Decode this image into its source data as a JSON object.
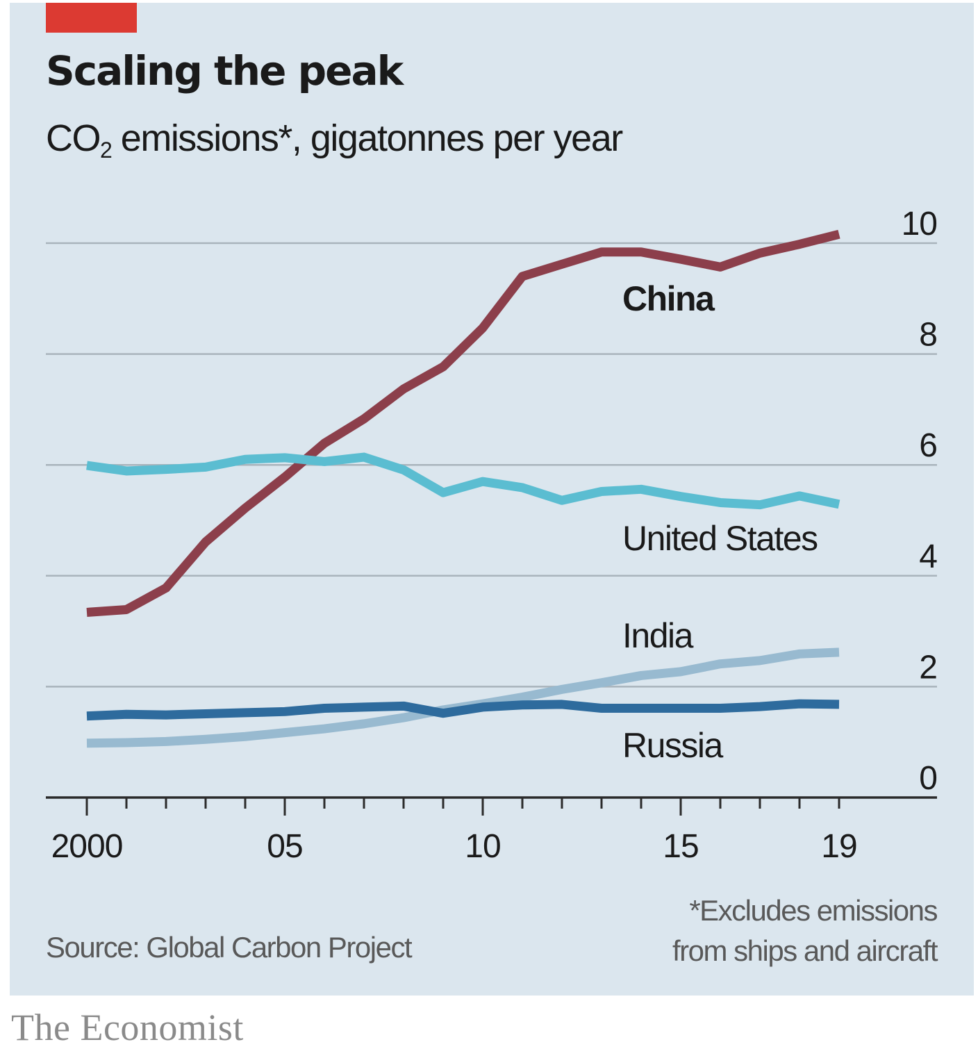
{
  "header": {
    "title": "Scaling the peak",
    "subtitle_prefix": "CO",
    "subtitle_subscript": "2",
    "subtitle_suffix": " emissions*, gigatonnes per year"
  },
  "footer": {
    "source": "Source: Global Carbon Project",
    "footnote_line1": "*Excludes emissions",
    "footnote_line2": "from ships and aircraft",
    "brand": "The Economist"
  },
  "colors": {
    "background": "#dbe6ee",
    "accent_tag": "#dc3a32",
    "gridline": "#a9b4bc",
    "axis": "#2b2b2b"
  },
  "chart_data": {
    "type": "line",
    "title": "Scaling the peak",
    "subtitle": "CO2 emissions*, gigatonnes per year",
    "xlabel": "",
    "ylabel": "Gigatonnes per year",
    "x": [
      2000,
      2001,
      2002,
      2003,
      2004,
      2005,
      2006,
      2007,
      2008,
      2009,
      2010,
      2011,
      2012,
      2013,
      2014,
      2015,
      2016,
      2017,
      2018,
      2019
    ],
    "xlim": [
      2000,
      2019
    ],
    "x_ticks": [
      2000,
      2001,
      2002,
      2003,
      2004,
      2005,
      2006,
      2007,
      2008,
      2009,
      2010,
      2011,
      2012,
      2013,
      2014,
      2015,
      2016,
      2017,
      2018,
      2019
    ],
    "x_major_ticks": [
      2000,
      2005,
      2010,
      2015
    ],
    "x_tick_labels": [
      {
        "value": 2000,
        "label": "2000"
      },
      {
        "value": 2005,
        "label": "05"
      },
      {
        "value": 2010,
        "label": "10"
      },
      {
        "value": 2015,
        "label": "15"
      },
      {
        "value": 2019,
        "label": "19"
      }
    ],
    "ylim": [
      0,
      10
    ],
    "y_ticks": [
      0,
      2,
      4,
      6,
      8,
      10
    ],
    "y_tick_labels": [
      "0",
      "2",
      "4",
      "6",
      "8",
      "10"
    ],
    "y_axis_side": "right",
    "grid": true,
    "legend": "direct-labels",
    "series": [
      {
        "name": "China",
        "label_bold": true,
        "color": "#8c3f4b",
        "values": [
          3.34,
          3.39,
          3.78,
          4.61,
          5.22,
          5.78,
          6.39,
          6.83,
          7.37,
          7.77,
          8.47,
          9.4,
          9.62,
          9.84,
          9.84,
          9.71,
          9.57,
          9.82,
          9.98,
          10.16
        ]
      },
      {
        "name": "United States",
        "label_bold": false,
        "color": "#5bbdd1",
        "values": [
          5.99,
          5.89,
          5.92,
          5.96,
          6.1,
          6.13,
          6.06,
          6.14,
          5.91,
          5.5,
          5.7,
          5.59,
          5.36,
          5.52,
          5.56,
          5.43,
          5.32,
          5.28,
          5.44,
          5.29
        ]
      },
      {
        "name": "India",
        "label_bold": false,
        "color": "#98bad0",
        "values": [
          0.98,
          0.99,
          1.01,
          1.05,
          1.1,
          1.17,
          1.24,
          1.33,
          1.44,
          1.58,
          1.69,
          1.81,
          1.95,
          2.07,
          2.2,
          2.27,
          2.41,
          2.47,
          2.59,
          2.62
        ]
      },
      {
        "name": "Russia",
        "label_bold": false,
        "color": "#2e6b9d",
        "values": [
          1.47,
          1.5,
          1.49,
          1.51,
          1.53,
          1.55,
          1.61,
          1.63,
          1.65,
          1.52,
          1.63,
          1.67,
          1.68,
          1.61,
          1.61,
          1.61,
          1.61,
          1.64,
          1.69,
          1.68
        ]
      }
    ],
    "annotations": [
      "China",
      "United States",
      "India",
      "Russia"
    ]
  }
}
